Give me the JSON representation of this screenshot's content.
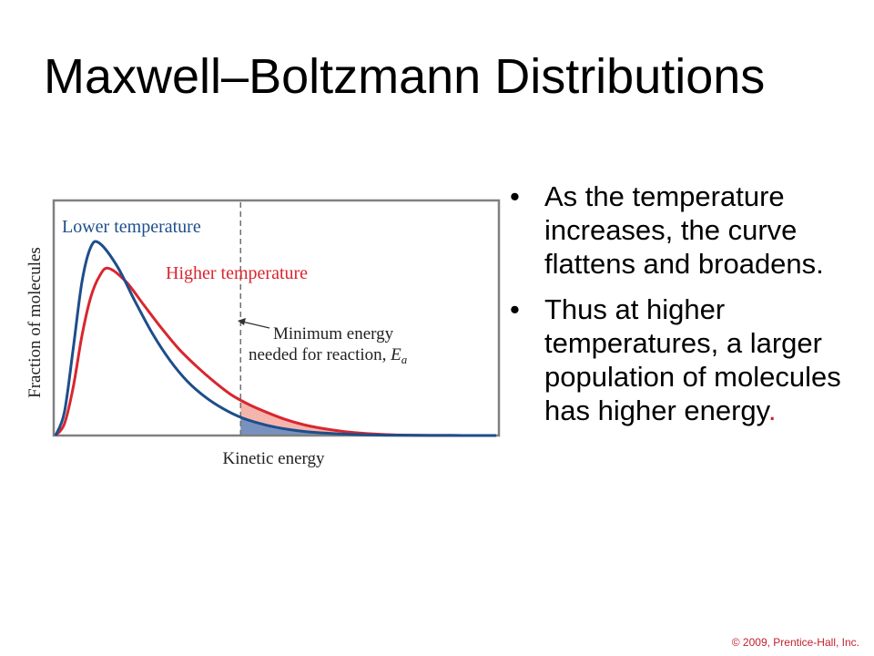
{
  "slide": {
    "title": "Maxwell–Boltzmann Distributions",
    "bullets": [
      {
        "text": "As the temperature increases, the curve flattens and broadens.",
        "end": ""
      },
      {
        "text": "Thus at higher temperatures, a larger population of molecules has higher energy",
        "end": "."
      }
    ],
    "bullet_symbol": "•",
    "copyright": "© 2009, Prentice-Hall, Inc."
  },
  "colors": {
    "lower": "#1d4e8a",
    "higher": "#d9262f",
    "lower_fill": "#7892c0",
    "higher_fill": "#f4b5ad",
    "frame": "#808080",
    "dashed": "#707070",
    "accent_text": "#c3202e"
  },
  "chart_data": {
    "type": "line",
    "xlabel": "Kinetic energy",
    "ylabel": "Fraction of molecules",
    "axes_values_shown": false,
    "grid": false,
    "series": [
      {
        "name": "Lower temperature",
        "x": [
          0,
          0.02,
          0.04,
          0.06,
          0.08,
          0.1,
          0.14,
          0.18,
          0.22,
          0.26,
          0.3,
          0.34,
          0.38,
          0.42,
          0.46,
          0.5,
          0.55,
          0.6,
          0.65,
          0.7,
          0.75,
          0.8,
          0.85,
          0.9,
          0.95,
          1.0
        ],
        "y": [
          0,
          0.12,
          0.45,
          0.8,
          0.98,
          1.0,
          0.88,
          0.7,
          0.53,
          0.39,
          0.28,
          0.2,
          0.14,
          0.095,
          0.065,
          0.043,
          0.025,
          0.014,
          0.008,
          0.004,
          0.002,
          0.0012,
          0.0006,
          0.0003,
          0.0001,
          0
        ]
      },
      {
        "name": "Higher temperature",
        "x": [
          0,
          0.02,
          0.04,
          0.06,
          0.08,
          0.1,
          0.12,
          0.16,
          0.2,
          0.24,
          0.28,
          0.32,
          0.36,
          0.4,
          0.44,
          0.48,
          0.52,
          0.56,
          0.6,
          0.65,
          0.7,
          0.75,
          0.8,
          0.85,
          0.9,
          0.95,
          1.0
        ],
        "y": [
          0,
          0.06,
          0.25,
          0.52,
          0.72,
          0.83,
          0.87,
          0.8,
          0.68,
          0.56,
          0.45,
          0.36,
          0.28,
          0.21,
          0.16,
          0.12,
          0.085,
          0.058,
          0.039,
          0.022,
          0.011,
          0.005,
          0.002,
          0.0008,
          0.0003,
          0.0001,
          0
        ]
      }
    ],
    "threshold": {
      "x": 0.42,
      "label_lines": [
        "Minimum energy",
        "needed for reaction, "
      ],
      "label_var": "E",
      "label_sub": "a"
    }
  }
}
